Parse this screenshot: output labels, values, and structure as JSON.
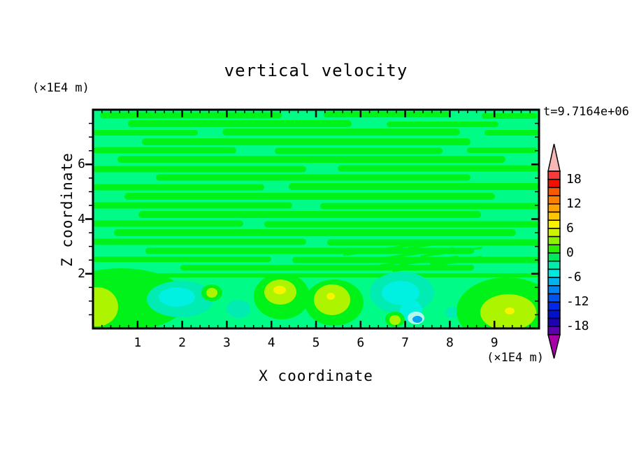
{
  "title": "vertical velocity",
  "timestamp": "t=9.7164e+06",
  "axes": {
    "x": {
      "label": "X coordinate",
      "units": "(×1E4 m)",
      "range": [
        0,
        10
      ],
      "tick_values": [
        1,
        2,
        3,
        4,
        5,
        6,
        7,
        8,
        9
      ],
      "tick_labels": [
        "1",
        "2",
        "3",
        "4",
        "5",
        "6",
        "7",
        "8",
        "9"
      ],
      "minor_ticks_per_unit": 5
    },
    "z": {
      "label": "Z coordinate",
      "units": "(×1E4 m)",
      "range": [
        0,
        8
      ],
      "tick_values": [
        2,
        4,
        6
      ],
      "tick_labels": [
        "2",
        "4",
        "6"
      ],
      "minor_tick_spacing": 0.5
    }
  },
  "colorbar": {
    "tick_labels": [
      "18",
      "12",
      "6",
      "0",
      "-6",
      "-12",
      "-18"
    ],
    "tick_values": [
      18,
      12,
      6,
      0,
      -6,
      -12,
      -18
    ],
    "min": -20,
    "max": 20,
    "step": 2,
    "colors_top_to_bottom": [
      "#f93a3a",
      "#f31000",
      "#f95900",
      "#fd7f00",
      "#ffa300",
      "#ffc600",
      "#fbf000",
      "#cef300",
      "#8df200",
      "#2bee00",
      "#00ea5e",
      "#00edab",
      "#00e9e0",
      "#00b4ef",
      "#0083f3",
      "#0053f0",
      "#0028e6",
      "#0010cd",
      "#1c02b2",
      "#5b00ae"
    ],
    "over_arrow_color": "#f8b7b7",
    "under_arrow_color": "#a800a8"
  },
  "chart_data": {
    "type": "heatmap",
    "title": "vertical velocity",
    "xlabel": "X coordinate (×1E4 m)",
    "ylabel": "Z coordinate (×1E4 m)",
    "time_annotation": "t=9.7164e+06",
    "x_range": [
      0,
      10
    ],
    "z_range": [
      0,
      8
    ],
    "value_levels": {
      "min": -20,
      "max": 20,
      "step": 2
    },
    "field_summary": "Filled contour field of vertical velocity. Above z≈2 the field is near zero: elongated horizontal streaks alternating between the 0..+2 (green) and -2..0 (spring green) bands, with fine slanted striations near x≈5.5-8, z≈2-3. Below z≈2 there are stronger cells: updraft blobs reaching +4..+8 (yellow-green/yellow) near x≈0.2, 4.3, 5.1, 9.2 and downdraft patches reaching -4..-8 (aqua/cyan, one -8..-10 sky-blue spot near x≈7.3, z≈0.2).",
    "field": {
      "palette": {
        "background": "#00fb87",
        "band": "#00f318",
        "yellow_green": "#adf400",
        "yellow": "#f8f400",
        "aqua": "#00ecb2",
        "cyan": "#00f0e2",
        "pale_cyan": "#b2f8ea",
        "sky_blue": "#00a6f2"
      },
      "streaks": [
        [
          10,
          8,
          260,
          9
        ],
        [
          330,
          7,
          180,
          8
        ],
        [
          556,
          9,
          80,
          8
        ],
        [
          50,
          20,
          320,
          10
        ],
        [
          420,
          21,
          160,
          8
        ],
        [
          0,
          33,
          150,
          8
        ],
        [
          185,
          32,
          340,
          10
        ],
        [
          560,
          33,
          78,
          8
        ],
        [
          70,
          46,
          470,
          10
        ],
        [
          0,
          58,
          205,
          9
        ],
        [
          260,
          59,
          240,
          9
        ],
        [
          535,
          58,
          100,
          8
        ],
        [
          35,
          71,
          555,
          10
        ],
        [
          0,
          85,
          305,
          9
        ],
        [
          350,
          84,
          288,
          9
        ],
        [
          90,
          97,
          450,
          9
        ],
        [
          0,
          111,
          245,
          9
        ],
        [
          280,
          110,
          358,
          10
        ],
        [
          45,
          124,
          530,
          10
        ],
        [
          0,
          137,
          285,
          9
        ],
        [
          325,
          138,
          313,
          9
        ],
        [
          65,
          150,
          490,
          10
        ],
        [
          0,
          163,
          215,
          9
        ],
        [
          245,
          164,
          393,
          9
        ],
        [
          30,
          176,
          575,
          10
        ],
        [
          0,
          189,
          305,
          9
        ],
        [
          335,
          190,
          303,
          9
        ],
        [
          75,
          202,
          470,
          9
        ],
        [
          0,
          214,
          255,
          8
        ],
        [
          285,
          215,
          353,
          9
        ],
        [
          125,
          226,
          420,
          8
        ],
        [
          0,
          237,
          638,
          6
        ]
      ],
      "striations": [
        [
          358,
          208,
          70
        ],
        [
          378,
          218,
          90
        ],
        [
          398,
          202,
          80
        ],
        [
          418,
          212,
          100
        ],
        [
          438,
          222,
          85
        ],
        [
          450,
          198,
          70
        ],
        [
          468,
          210,
          90
        ],
        [
          482,
          221,
          75
        ],
        [
          428,
          231,
          110
        ],
        [
          368,
          229,
          95
        ]
      ],
      "bottom_patches": [
        {
          "cx": 40,
          "cy": 272,
          "rx": 95,
          "ry": 45,
          "c": "band"
        },
        {
          "cx": 6,
          "cy": 282,
          "rx": 30,
          "ry": 28,
          "c": "yellow_green"
        },
        {
          "cx": 125,
          "cy": 271,
          "rx": 48,
          "ry": 26,
          "c": "aqua"
        },
        {
          "cx": 120,
          "cy": 268,
          "rx": 26,
          "ry": 14,
          "c": "cyan"
        },
        {
          "cx": 170,
          "cy": 262,
          "rx": 15,
          "ry": 12,
          "c": "band"
        },
        {
          "cx": 170,
          "cy": 262,
          "rx": 8,
          "ry": 7,
          "c": "yellow_green"
        },
        {
          "cx": 208,
          "cy": 285,
          "rx": 17,
          "ry": 13,
          "c": "aqua"
        },
        {
          "cx": 270,
          "cy": 267,
          "rx": 40,
          "ry": 33,
          "c": "band"
        },
        {
          "cx": 268,
          "cy": 261,
          "rx": 23,
          "ry": 18,
          "c": "yellow_green"
        },
        {
          "cx": 267,
          "cy": 258,
          "rx": 9,
          "ry": 6,
          "c": "yellow"
        },
        {
          "cx": 345,
          "cy": 276,
          "rx": 42,
          "ry": 33,
          "c": "band"
        },
        {
          "cx": 342,
          "cy": 272,
          "rx": 26,
          "ry": 22,
          "c": "yellow_green"
        },
        {
          "cx": 340,
          "cy": 267,
          "rx": 6,
          "ry": 5,
          "c": "yellow"
        },
        {
          "cx": 442,
          "cy": 262,
          "rx": 46,
          "ry": 30,
          "c": "aqua"
        },
        {
          "cx": 440,
          "cy": 262,
          "rx": 27,
          "ry": 17,
          "c": "cyan"
        },
        {
          "cx": 455,
          "cy": 288,
          "rx": 16,
          "ry": 16,
          "c": "cyan"
        },
        {
          "cx": 462,
          "cy": 298,
          "rx": 12,
          "ry": 9,
          "c": "pale_cyan"
        },
        {
          "cx": 464,
          "cy": 300,
          "rx": 7,
          "ry": 5,
          "c": "sky_blue"
        },
        {
          "cx": 432,
          "cy": 300,
          "rx": 14,
          "ry": 11,
          "c": "band"
        },
        {
          "cx": 432,
          "cy": 301,
          "rx": 8,
          "ry": 7,
          "c": "yellow_green"
        },
        {
          "cx": 514,
          "cy": 290,
          "rx": 10,
          "ry": 8,
          "c": "aqua"
        },
        {
          "cx": 592,
          "cy": 288,
          "rx": 72,
          "ry": 48,
          "c": "band"
        },
        {
          "cx": 594,
          "cy": 290,
          "rx": 40,
          "ry": 26,
          "c": "yellow_green"
        },
        {
          "cx": 596,
          "cy": 288,
          "rx": 7,
          "ry": 5,
          "c": "yellow"
        }
      ]
    }
  }
}
